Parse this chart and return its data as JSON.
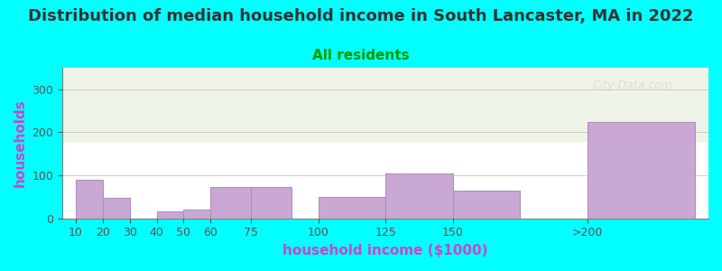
{
  "title": "Distribution of median household income in South Lancaster, MA in 2022",
  "subtitle": "All residents",
  "xlabel": "household income ($1000)",
  "ylabel": "households",
  "background_color": "#00FFFF",
  "plot_bg_top": "#f0f4e8",
  "plot_bg_bottom": "#ffffff",
  "bar_color": "#c9a8d4",
  "bar_edge_color": "#b090c0",
  "title_color": "#333333",
  "subtitle_color": "#009900",
  "axis_label_color": "#cc44cc",
  "tick_label_color": "#555555",
  "watermark": "City-Data.com",
  "categories": [
    "10",
    "20",
    "30",
    "40",
    "50",
    "60",
    "75",
    "100",
    "125",
    "150",
    ">200"
  ],
  "values": [
    90,
    48,
    0,
    17,
    20,
    72,
    72,
    50,
    105,
    65,
    225
  ],
  "bar_positions": [
    10,
    20,
    30,
    40,
    50,
    60,
    75,
    100,
    125,
    150,
    200
  ],
  "bar_widths": [
    10,
    10,
    10,
    10,
    10,
    15,
    15,
    25,
    25,
    25,
    40
  ],
  "ylim": [
    0,
    350
  ],
  "yticks": [
    0,
    100,
    200,
    300
  ],
  "figsize": [
    8.0,
    3.0
  ],
  "dpi": 100
}
